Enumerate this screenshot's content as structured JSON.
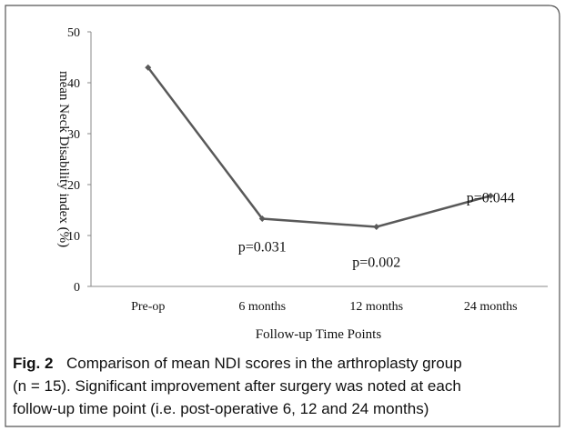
{
  "chart_data": {
    "type": "line",
    "categories": [
      "Pre-op",
      "6 months",
      "12 months",
      "24 months"
    ],
    "series": [
      {
        "name": "mean NDI",
        "color": "#595959",
        "values": [
          43,
          13.3,
          11.7,
          17.8
        ]
      }
    ],
    "ylim": [
      0,
      50
    ],
    "yticks": [
      0,
      10,
      20,
      30,
      40,
      50
    ],
    "xlabel": "Follow-up Time Points",
    "ylabel": "mean Neck Disability index (%)",
    "annotations": [
      "p=0.031",
      "p=0.002",
      "p=0.044"
    ],
    "grid": false
  },
  "caption": {
    "label": "Fig. 2",
    "lines": [
      "Comparison of mean NDI scores in the arthroplasty group",
      "(n = 15). Significant improvement after surgery was noted at each",
      "follow-up time point (i.e. post-operative 6, 12 and 24 months)"
    ]
  }
}
